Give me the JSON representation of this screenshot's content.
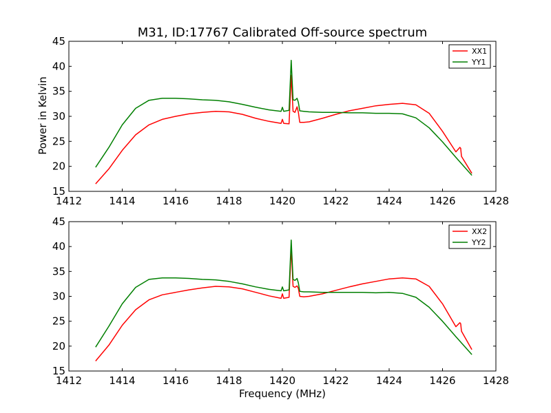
{
  "chart_data": {
    "type": "line",
    "title": "M31, ID:17767 Calibrated Off-source spectrum",
    "xlabel": "Frequency (MHz)",
    "ylabel": "Power in Kelvin",
    "grid": false,
    "legend_position": "top-right",
    "panels": [
      {
        "xlim": [
          1412,
          1428
        ],
        "ylim": [
          15,
          45
        ],
        "xticks": [
          1412,
          1414,
          1416,
          1418,
          1420,
          1422,
          1424,
          1426,
          1428
        ],
        "yticks": [
          15,
          20,
          25,
          30,
          35,
          40,
          45
        ],
        "series": [
          {
            "name": "XX1",
            "color": "#ff0000",
            "x": [
              1413.0,
              1413.5,
              1414.0,
              1414.5,
              1415.0,
              1415.5,
              1416.0,
              1416.5,
              1417.0,
              1417.5,
              1418.0,
              1418.5,
              1419.0,
              1419.5,
              1419.95,
              1420.0,
              1420.05,
              1420.25,
              1420.33,
              1420.4,
              1420.47,
              1420.55,
              1420.6,
              1420.65,
              1420.8,
              1421.0,
              1421.5,
              1422.0,
              1422.5,
              1423.0,
              1423.5,
              1424.0,
              1424.5,
              1425.0,
              1425.5,
              1426.0,
              1426.5,
              1426.65,
              1426.68,
              1426.71,
              1427.1
            ],
            "y": [
              16.5,
              19.5,
              23.2,
              26.3,
              28.3,
              29.4,
              30.0,
              30.5,
              30.8,
              31.0,
              30.9,
              30.4,
              29.6,
              29.0,
              28.6,
              29.4,
              28.6,
              28.5,
              38.2,
              31.0,
              30.8,
              31.9,
              30.8,
              28.8,
              28.8,
              28.9,
              29.6,
              30.4,
              31.1,
              31.6,
              32.1,
              32.4,
              32.6,
              32.3,
              30.6,
              27.0,
              22.9,
              23.8,
              23.6,
              22.0,
              18.6
            ]
          },
          {
            "name": "YY1",
            "color": "#007f00",
            "x": [
              1413.0,
              1413.5,
              1414.0,
              1414.5,
              1415.0,
              1415.5,
              1416.0,
              1416.5,
              1417.0,
              1417.5,
              1418.0,
              1418.5,
              1419.0,
              1419.5,
              1419.95,
              1420.0,
              1420.05,
              1420.25,
              1420.33,
              1420.4,
              1420.47,
              1420.55,
              1420.6,
              1420.65,
              1420.8,
              1421.0,
              1421.5,
              1422.0,
              1422.5,
              1423.0,
              1423.5,
              1424.0,
              1424.5,
              1425.0,
              1425.5,
              1426.0,
              1426.5,
              1427.1
            ],
            "y": [
              19.8,
              23.8,
              28.3,
              31.6,
              33.2,
              33.6,
              33.6,
              33.5,
              33.3,
              33.2,
              32.9,
              32.4,
              31.8,
              31.3,
              31.0,
              31.8,
              31.0,
              31.2,
              41.2,
              33.3,
              33.2,
              33.6,
              32.8,
              31.1,
              31.0,
              30.9,
              30.8,
              30.8,
              30.7,
              30.7,
              30.6,
              30.6,
              30.5,
              29.7,
              27.7,
              24.9,
              21.8,
              18.2
            ]
          }
        ]
      },
      {
        "xlim": [
          1412,
          1428
        ],
        "ylim": [
          15,
          45
        ],
        "xticks": [
          1412,
          1414,
          1416,
          1418,
          1420,
          1422,
          1424,
          1426,
          1428
        ],
        "yticks": [
          15,
          20,
          25,
          30,
          35,
          40,
          45
        ],
        "series": [
          {
            "name": "XX2",
            "color": "#ff0000",
            "x": [
              1413.0,
              1413.5,
              1414.0,
              1414.5,
              1415.0,
              1415.5,
              1416.0,
              1416.5,
              1417.0,
              1417.5,
              1418.0,
              1418.5,
              1419.0,
              1419.5,
              1419.95,
              1420.0,
              1420.05,
              1420.25,
              1420.33,
              1420.4,
              1420.47,
              1420.55,
              1420.6,
              1420.65,
              1420.8,
              1421.0,
              1421.5,
              1422.0,
              1422.5,
              1423.0,
              1423.5,
              1424.0,
              1424.5,
              1425.0,
              1425.5,
              1426.0,
              1426.5,
              1426.65,
              1426.68,
              1426.71,
              1427.1
            ],
            "y": [
              17.0,
              20.2,
              24.2,
              27.3,
              29.3,
              30.3,
              30.8,
              31.3,
              31.7,
              32.0,
              31.9,
              31.5,
              30.8,
              30.1,
              29.6,
              30.5,
              29.6,
              29.8,
              39.8,
              32.0,
              31.8,
              32.1,
              31.6,
              30.0,
              29.9,
              30.0,
              30.5,
              31.2,
              31.9,
              32.5,
              33.0,
              33.5,
              33.7,
              33.5,
              32.0,
              28.5,
              23.9,
              24.7,
              24.5,
              23.0,
              19.3
            ]
          },
          {
            "name": "YY2",
            "color": "#007f00",
            "x": [
              1413.0,
              1413.5,
              1414.0,
              1414.5,
              1415.0,
              1415.5,
              1416.0,
              1416.5,
              1417.0,
              1417.5,
              1418.0,
              1418.5,
              1419.0,
              1419.5,
              1419.95,
              1420.0,
              1420.05,
              1420.25,
              1420.33,
              1420.4,
              1420.47,
              1420.55,
              1420.6,
              1420.65,
              1420.8,
              1421.0,
              1421.5,
              1422.0,
              1422.5,
              1423.0,
              1423.5,
              1424.0,
              1424.5,
              1425.0,
              1425.5,
              1426.0,
              1426.5,
              1427.1
            ],
            "y": [
              19.8,
              24.0,
              28.5,
              31.8,
              33.4,
              33.7,
              33.7,
              33.6,
              33.4,
              33.3,
              33.0,
              32.5,
              31.9,
              31.4,
              31.1,
              31.9,
              31.1,
              31.3,
              41.3,
              33.4,
              33.2,
              33.6,
              32.7,
              31.0,
              30.9,
              30.9,
              30.8,
              30.8,
              30.8,
              30.8,
              30.7,
              30.8,
              30.6,
              29.8,
              27.8,
              25.0,
              21.9,
              18.3
            ]
          }
        ]
      }
    ]
  }
}
